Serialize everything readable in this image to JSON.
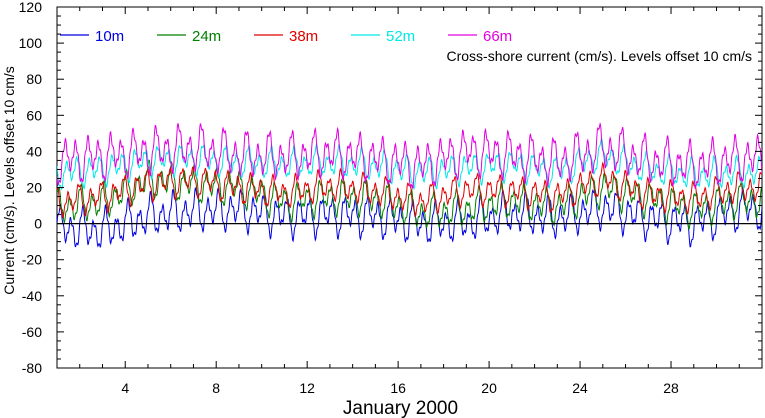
{
  "chart_data": {
    "type": "line",
    "title": "",
    "annotation": "Cross-shore current (cm/s). Levels offset 10 cm/s",
    "xlabel": "January 2000",
    "ylabel": "Current (cm/s). Levels offset 10 cm/s",
    "xlim": [
      1,
      32
    ],
    "ylim": [
      -80,
      120
    ],
    "x_ticks": [
      4,
      8,
      12,
      16,
      20,
      24,
      28
    ],
    "x_tick_labels": [
      "4",
      "8",
      "12",
      "16",
      "20",
      "24",
      "28"
    ],
    "y_ticks": [
      -80,
      -60,
      -40,
      -20,
      0,
      20,
      40,
      60,
      80,
      100,
      120
    ],
    "y_tick_labels": [
      "-80",
      "-60",
      "-40",
      "-20",
      "0",
      "20",
      "40",
      "60",
      "80",
      "100",
      "120"
    ],
    "zero_line": 0,
    "grid": false,
    "legend_position": "top-left",
    "series": [
      {
        "name": "10m",
        "color": "#0000e0",
        "offset": 0,
        "x": [
          1,
          3,
          5,
          7,
          9,
          11,
          13,
          15,
          17,
          19,
          21,
          23,
          25,
          27,
          29,
          31
        ],
        "y": [
          -2,
          -4,
          4,
          7,
          8,
          4,
          5,
          4,
          0,
          1,
          6,
          3,
          9,
          3,
          0,
          8
        ]
      },
      {
        "name": "24m",
        "color": "#008000",
        "offset": 10,
        "x": [
          1,
          3,
          5,
          7,
          9,
          11,
          13,
          15,
          17,
          19,
          21,
          23,
          25,
          27,
          29,
          31
        ],
        "y": [
          -1,
          2,
          14,
          12,
          10,
          2,
          5,
          4,
          -4,
          -2,
          3,
          -1,
          10,
          4,
          -2,
          3
        ]
      },
      {
        "name": "38m",
        "color": "#e00000",
        "offset": 20,
        "x": [
          1,
          3,
          5,
          7,
          9,
          11,
          13,
          15,
          17,
          19,
          21,
          23,
          25,
          27,
          29,
          31
        ],
        "y": [
          -8,
          -5,
          2,
          4,
          0,
          -3,
          1,
          -2,
          -8,
          -1,
          -2,
          -5,
          5,
          -4,
          -6,
          0
        ]
      },
      {
        "name": "52m",
        "color": "#00e8e8",
        "offset": 30,
        "x": [
          1,
          3,
          5,
          7,
          9,
          11,
          13,
          15,
          17,
          19,
          21,
          23,
          25,
          27,
          29,
          31
        ],
        "y": [
          -2,
          0,
          5,
          6,
          4,
          3,
          4,
          2,
          -2,
          1,
          3,
          -1,
          8,
          0,
          -3,
          -2
        ]
      },
      {
        "name": "66m",
        "color": "#e000e0",
        "offset": 40,
        "x": [
          1,
          3,
          5,
          7,
          9,
          11,
          13,
          15,
          17,
          19,
          21,
          23,
          25,
          27,
          29,
          31
        ],
        "y": [
          -5,
          -3,
          0,
          2,
          -2,
          -3,
          -1,
          -4,
          -8,
          0,
          -2,
          -6,
          2,
          -5,
          -8,
          -4
        ]
      }
    ]
  }
}
